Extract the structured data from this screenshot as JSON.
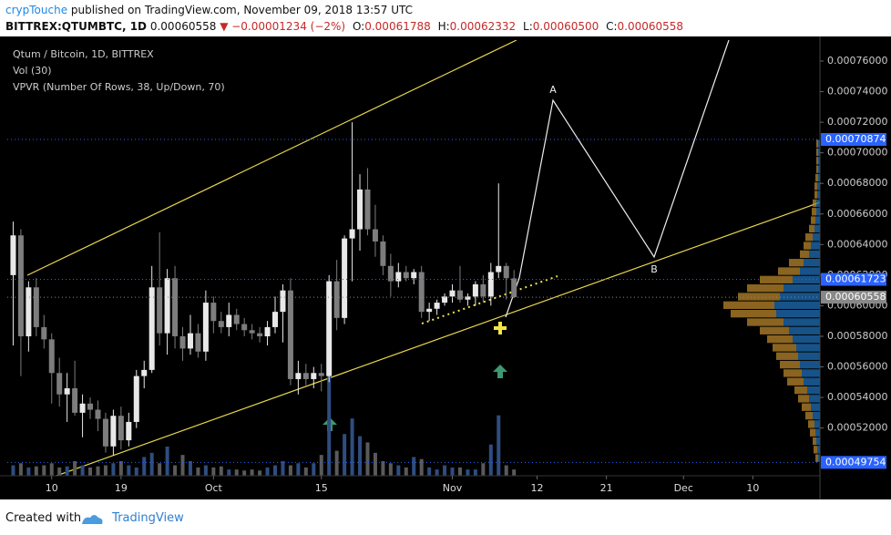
{
  "header": {
    "author": "crypTouche",
    "published": "published on TradingView.com, November 09, 2018 13:57 UTC",
    "symbol": "BITTREX:QTUMBTC, 1D",
    "last": "0.00060558",
    "change": "▼ −0.00001234 (−2%)",
    "ohlc": [
      {
        "key": "O:",
        "value": "0.00061788"
      },
      {
        "key": "H:",
        "value": "0.00062332"
      },
      {
        "key": "L:",
        "value": "0.00060500"
      },
      {
        "key": "C:",
        "value": "0.00060558"
      }
    ]
  },
  "footer": {
    "created": "Created with",
    "brand": "TradingView"
  },
  "chart_data": {
    "type": "candlestick",
    "legend": [
      "Qtum / Bitcoin, 1D, BITTREX",
      "Vol (30)",
      "VPVR (Number Of Rows, 38, Up/Down, 70)"
    ],
    "x": [
      "2018-09-05",
      "2018-09-06",
      "2018-09-07",
      "2018-09-08",
      "2018-09-09",
      "2018-09-10",
      "2018-09-11",
      "2018-09-12",
      "2018-09-13",
      "2018-09-14",
      "2018-09-15",
      "2018-09-16",
      "2018-09-17",
      "2018-09-18",
      "2018-09-19",
      "2018-09-20",
      "2018-09-21",
      "2018-09-22",
      "2018-09-23",
      "2018-09-24",
      "2018-09-25",
      "2018-09-26",
      "2018-09-27",
      "2018-09-28",
      "2018-09-29",
      "2018-09-30",
      "2018-10-01",
      "2018-10-02",
      "2018-10-03",
      "2018-10-04",
      "2018-10-05",
      "2018-10-06",
      "2018-10-07",
      "2018-10-08",
      "2018-10-09",
      "2018-10-10",
      "2018-10-11",
      "2018-10-12",
      "2018-10-13",
      "2018-10-14",
      "2018-10-15",
      "2018-10-16",
      "2018-10-17",
      "2018-10-18",
      "2018-10-19",
      "2018-10-20",
      "2018-10-21",
      "2018-10-22",
      "2018-10-23",
      "2018-10-24",
      "2018-10-25",
      "2018-10-26",
      "2018-10-27",
      "2018-10-28",
      "2018-10-29",
      "2018-10-30",
      "2018-10-31",
      "2018-11-01",
      "2018-11-02",
      "2018-11-03",
      "2018-11-04",
      "2018-11-05",
      "2018-11-06",
      "2018-11-07",
      "2018-11-08",
      "2018-11-09"
    ],
    "open": [
      0.00062,
      0.000646,
      0.00058,
      0.000612,
      0.000586,
      0.000578,
      0.000556,
      0.000542,
      0.000546,
      0.00053,
      0.000536,
      0.000532,
      0.000526,
      0.000508,
      0.000528,
      0.000512,
      0.000524,
      0.000554,
      0.000558,
      0.000612,
      0.000582,
      0.000618,
      0.00058,
      0.000572,
      0.000582,
      0.00057,
      0.000602,
      0.00059,
      0.000586,
      0.000594,
      0.000588,
      0.000584,
      0.000582,
      0.00058,
      0.000586,
      0.000596,
      0.00061,
      0.000552,
      0.000556,
      0.000552,
      0.000556,
      0.000554,
      0.000616,
      0.000592,
      0.000644,
      0.00065,
      0.000676,
      0.00065,
      0.000642,
      0.000626,
      0.000616,
      0.000622,
      0.000618,
      0.000622,
      0.000596,
      0.000598,
      0.000602,
      0.000606,
      0.00061,
      0.000604,
      0.000606,
      0.000614,
      0.000606,
      0.000622,
      0.000626,
      0.00061788
    ],
    "high": [
      0.000655,
      0.00065,
      0.000616,
      0.000618,
      0.000594,
      0.000582,
      0.000566,
      0.000556,
      0.000564,
      0.000542,
      0.00054,
      0.000538,
      0.00053,
      0.000532,
      0.000534,
      0.00053,
      0.000558,
      0.000564,
      0.000626,
      0.000648,
      0.000624,
      0.000626,
      0.000586,
      0.000594,
      0.000588,
      0.00061,
      0.000606,
      0.000596,
      0.000602,
      0.000598,
      0.000592,
      0.000588,
      0.000586,
      0.00059,
      0.000606,
      0.000614,
      0.000618,
      0.000564,
      0.000562,
      0.00056,
      0.000562,
      0.00062,
      0.00063,
      0.000646,
      0.00072,
      0.000686,
      0.00069,
      0.000666,
      0.000646,
      0.000634,
      0.000628,
      0.000626,
      0.000624,
      0.000626,
      0.000602,
      0.000604,
      0.000608,
      0.000614,
      0.000626,
      0.000608,
      0.000616,
      0.00062,
      0.000628,
      0.00068,
      0.000628,
      0.00062332
    ],
    "low": [
      0.000574,
      0.000554,
      0.00057,
      0.00058,
      0.000572,
      0.000536,
      0.000534,
      0.000524,
      0.000528,
      0.000514,
      0.000526,
      0.000518,
      0.000504,
      0.000502,
      0.000506,
      0.000508,
      0.00052,
      0.000546,
      0.000556,
      0.000574,
      0.000568,
      0.000572,
      0.000564,
      0.000568,
      0.000566,
      0.000564,
      0.000582,
      0.000582,
      0.00058,
      0.000584,
      0.00058,
      0.000578,
      0.000576,
      0.000574,
      0.000582,
      0.000576,
      0.000548,
      0.000542,
      0.000548,
      0.000546,
      0.000544,
      0.00055,
      0.000584,
      0.000588,
      0.000616,
      0.000636,
      0.000646,
      0.000632,
      0.00062,
      0.000606,
      0.000612,
      0.000616,
      0.000614,
      0.000592,
      0.00059,
      0.000594,
      0.0006,
      0.000602,
      0.000602,
      0.0006,
      0.0006,
      0.000602,
      0.0006,
      0.000618,
      0.000604,
      0.000605
    ],
    "close": [
      0.000646,
      0.00058,
      0.000612,
      0.000586,
      0.000578,
      0.000556,
      0.000542,
      0.000546,
      0.00053,
      0.000536,
      0.000532,
      0.000526,
      0.000508,
      0.000528,
      0.000512,
      0.000524,
      0.000554,
      0.000558,
      0.000612,
      0.000582,
      0.000618,
      0.00058,
      0.000572,
      0.000582,
      0.00057,
      0.000602,
      0.00059,
      0.000586,
      0.000594,
      0.000588,
      0.000584,
      0.000582,
      0.00058,
      0.000586,
      0.000596,
      0.00061,
      0.000552,
      0.000556,
      0.000552,
      0.000556,
      0.000554,
      0.000616,
      0.000592,
      0.000644,
      0.00065,
      0.000676,
      0.00065,
      0.000642,
      0.000626,
      0.000616,
      0.000622,
      0.000618,
      0.000622,
      0.000596,
      0.000598,
      0.000602,
      0.000606,
      0.00061,
      0.000604,
      0.000606,
      0.000614,
      0.000606,
      0.000622,
      0.000626,
      0.000618,
      0.00060558
    ],
    "volume": [
      10,
      12,
      8,
      9,
      10,
      12,
      8,
      9,
      14,
      10,
      8,
      9,
      10,
      12,
      14,
      10,
      8,
      18,
      22,
      12,
      28,
      10,
      20,
      14,
      8,
      10,
      8,
      9,
      6,
      6,
      5,
      6,
      5,
      8,
      10,
      14,
      10,
      12,
      8,
      12,
      20,
      98,
      24,
      40,
      55,
      38,
      32,
      22,
      14,
      12,
      10,
      8,
      18,
      16,
      8,
      6,
      10,
      8,
      8,
      6,
      6,
      12,
      30,
      58,
      10,
      6
    ],
    "up_color": "#e8e8e8",
    "down_color": "#7d7d7d",
    "volume_up_color": "#2f4d80",
    "volume_down_color": "#5a5a5a",
    "vpvr": {
      "up_color": "#1f6fb5",
      "down_color": "#b8862b",
      "up": [
        2,
        3,
        4,
        5,
        6,
        8,
        10,
        12,
        14,
        18,
        20,
        22,
        24,
        26,
        30,
        34,
        40,
        48,
        50,
        44,
        40,
        30,
        22,
        18,
        12,
        10,
        8,
        6,
        5,
        4,
        4,
        3,
        3,
        2,
        2,
        2,
        2,
        2
      ],
      "down": [
        3,
        4,
        4,
        6,
        7,
        8,
        10,
        12,
        14,
        18,
        20,
        22,
        24,
        26,
        28,
        32,
        40,
        50,
        56,
        46,
        40,
        36,
        24,
        16,
        10,
        8,
        8,
        6,
        5,
        5,
        4,
        3,
        3,
        3,
        2,
        2,
        2,
        2
      ]
    },
    "price_lines": [
      {
        "value": 0.00070874,
        "color": "#2962ff"
      },
      {
        "value": 0.00061723,
        "color": "#2962ff"
      },
      {
        "value": 0.00060558,
        "color": "#888888"
      },
      {
        "value": 0.00049754,
        "color": "#2962ff"
      }
    ],
    "xlim": [
      "2018-09-04",
      "2018-12-18"
    ],
    "xticks": [
      {
        "value": "2018-09-10",
        "label": "10"
      },
      {
        "value": "2018-09-19",
        "label": "19"
      },
      {
        "value": "2018-10-01",
        "label": "Oct"
      },
      {
        "value": "2018-10-15",
        "label": "15"
      },
      {
        "value": "2018-11-01",
        "label": "Nov"
      },
      {
        "value": "2018-11-12",
        "label": "12"
      },
      {
        "value": "2018-11-21",
        "label": "21"
      },
      {
        "value": "2018-12-01",
        "label": "Dec"
      },
      {
        "value": "2018-12-10",
        "label": "10"
      }
    ],
    "ylim": [
      0.0004888,
      0.0007737
    ],
    "yticks": [
      {
        "value": 0.00052,
        "label": "0.00052000"
      },
      {
        "value": 0.00054,
        "label": "0.00054000"
      },
      {
        "value": 0.00056,
        "label": "0.00056000"
      },
      {
        "value": 0.00058,
        "label": "0.00058000"
      },
      {
        "value": 0.0006,
        "label": "0.00060000"
      },
      {
        "value": 0.00062,
        "label": "0.00062000"
      },
      {
        "value": 0.00064,
        "label": "0.00064000"
      },
      {
        "value": 0.00066,
        "label": "0.00066000"
      },
      {
        "value": 0.00068,
        "label": "0.00068000"
      },
      {
        "value": 0.0007,
        "label": "0.00070000"
      },
      {
        "value": 0.00072,
        "label": "0.00072000"
      },
      {
        "value": 0.00074,
        "label": "0.00074000"
      },
      {
        "value": 0.00076,
        "label": "0.00076000"
      }
    ],
    "annotations": [
      "A",
      "B"
    ]
  }
}
